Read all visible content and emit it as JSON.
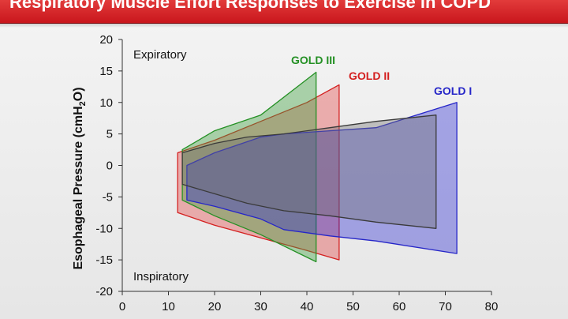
{
  "title": "Respiratory Muscle Effort Responses to Exercise in COPD",
  "chart_data": {
    "type": "area",
    "ylabel": "Esophageal Pressure (cmH2O)",
    "ylabel_main": "Esophageal Pressure (cmH",
    "ylabel_sub": "2",
    "ylabel_end": "O)",
    "xlim": [
      0,
      80
    ],
    "ylim": [
      -20,
      20
    ],
    "x_ticks": [
      0,
      10,
      20,
      30,
      40,
      50,
      60,
      70,
      80
    ],
    "y_ticks": [
      20,
      15,
      10,
      5,
      0,
      -5,
      -10,
      -15,
      -20
    ],
    "annotations": {
      "expiratory": "Expiratory",
      "inspiratory": "Inspiratory"
    },
    "grid": false,
    "series": [
      {
        "name": "GOLD I",
        "color": "#2626c8",
        "fill": "rgba(40,40,210,0.38)",
        "upper": [
          [
            14,
            0
          ],
          [
            20,
            2
          ],
          [
            30,
            4.5
          ],
          [
            35,
            5
          ],
          [
            45,
            5.5
          ],
          [
            55,
            6
          ],
          [
            72.5,
            10
          ]
        ],
        "lower": [
          [
            14,
            -5.5
          ],
          [
            20,
            -6.5
          ],
          [
            30,
            -8.5
          ],
          [
            35,
            -10.2
          ],
          [
            45,
            -11.2
          ],
          [
            55,
            -12
          ],
          [
            72.5,
            -14
          ]
        ]
      },
      {
        "name": "GOLD II",
        "color": "#d42020",
        "fill": "rgba(225,50,50,0.35)",
        "upper": [
          [
            12,
            2
          ],
          [
            20,
            4
          ],
          [
            30,
            7
          ],
          [
            40,
            10
          ],
          [
            47,
            12.8
          ]
        ],
        "lower": [
          [
            12,
            -7.5
          ],
          [
            20,
            -9.5
          ],
          [
            30,
            -11.5
          ],
          [
            40,
            -13.5
          ],
          [
            47,
            -15
          ]
        ]
      },
      {
        "name": "GOLD III",
        "color": "#249024",
        "fill": "rgba(60,160,60,0.40)",
        "upper": [
          [
            13,
            2.5
          ],
          [
            20,
            5.5
          ],
          [
            30,
            8
          ],
          [
            42,
            14.8
          ]
        ],
        "lower": [
          [
            13,
            -5.5
          ],
          [
            20,
            -8
          ],
          [
            30,
            -11
          ],
          [
            42,
            -15.3
          ]
        ]
      },
      {
        "name": "",
        "color": "#3a3a3a",
        "fill": "rgba(110,110,110,0.38)",
        "upper": [
          [
            13,
            2
          ],
          [
            20,
            3.5
          ],
          [
            27,
            4.5
          ],
          [
            35,
            5
          ],
          [
            45,
            6
          ],
          [
            55,
            7
          ],
          [
            68,
            8
          ]
        ],
        "lower": [
          [
            13,
            -3
          ],
          [
            20,
            -4.5
          ],
          [
            27,
            -6
          ],
          [
            35,
            -7.2
          ],
          [
            45,
            -8
          ],
          [
            55,
            -9
          ],
          [
            68,
            -10
          ]
        ]
      }
    ],
    "legend_placement": "labels near series"
  }
}
